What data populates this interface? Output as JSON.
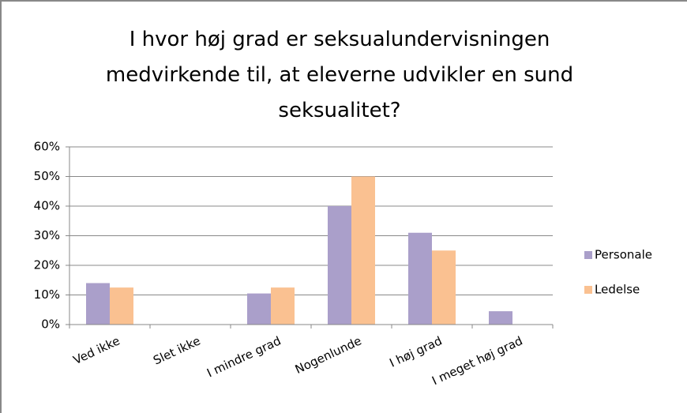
{
  "chart_data": {
    "type": "bar",
    "title": "I hvor høj grad er seksualundervisningen medvirkende til, at eleverne udvikler en sund seksualitet?",
    "categories": [
      "Ved ikke",
      "Slet ikke",
      "I mindre grad",
      "Nogenlunde",
      "I høj grad",
      "I meget høj grad"
    ],
    "series": [
      {
        "name": "Personale",
        "color": "#aa9fca",
        "values": [
          14,
          0,
          10.5,
          40,
          31,
          4.5
        ]
      },
      {
        "name": "Ledelse",
        "color": "#fac191",
        "values": [
          12.5,
          0,
          12.5,
          50,
          25,
          0
        ]
      }
    ],
    "ylim": [
      0,
      60
    ],
    "yticks": [
      {
        "value": 0,
        "label": "0%"
      },
      {
        "value": 10,
        "label": "10%"
      },
      {
        "value": 20,
        "label": "20%"
      },
      {
        "value": 30,
        "label": "30%"
      },
      {
        "value": 40,
        "label": "40%"
      },
      {
        "value": 50,
        "label": "50%"
      },
      {
        "value": 60,
        "label": "60%"
      }
    ],
    "grid": true,
    "legend": "right"
  }
}
